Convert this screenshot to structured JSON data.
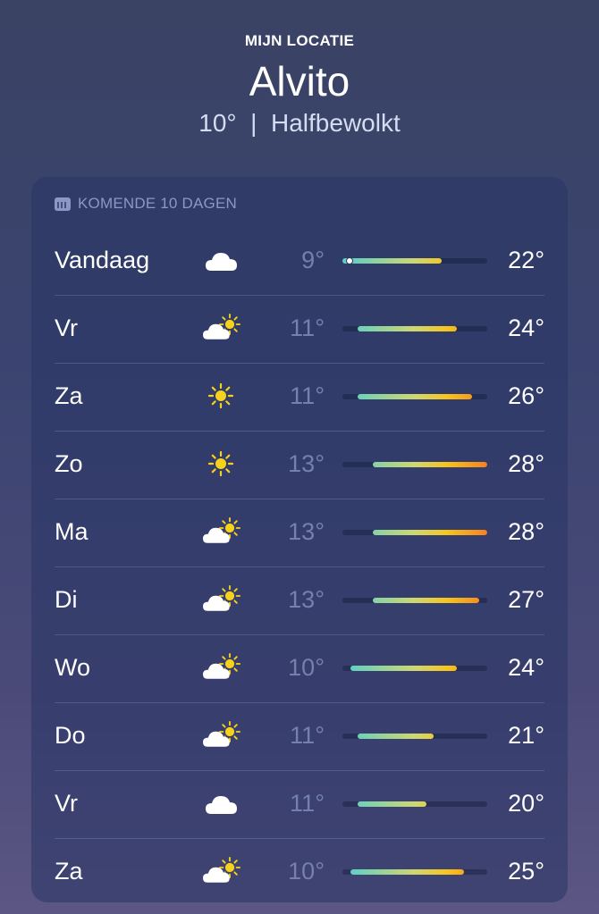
{
  "header": {
    "location_label": "MIJN LOCATIE",
    "city": "Alvito",
    "current_temp": "10°",
    "separator": "|",
    "condition": "Halfbewolkt"
  },
  "forecast": {
    "title": "KOMENDE 10 DAGEN",
    "title_icon": "calendar-icon",
    "range_min": 9,
    "range_max": 28,
    "current_temp_value": 10,
    "days": [
      {
        "day": "Vandaag",
        "icon": "cloud",
        "low": "9°",
        "high": "22°",
        "low_value": 9,
        "high_value": 22
      },
      {
        "day": "Vr",
        "icon": "partly-sunny",
        "low": "11°",
        "high": "24°",
        "low_value": 11,
        "high_value": 24
      },
      {
        "day": "Za",
        "icon": "sun",
        "low": "11°",
        "high": "26°",
        "low_value": 11,
        "high_value": 26
      },
      {
        "day": "Zo",
        "icon": "sun",
        "low": "13°",
        "high": "28°",
        "low_value": 13,
        "high_value": 28
      },
      {
        "day": "Ma",
        "icon": "partly-sunny",
        "low": "13°",
        "high": "28°",
        "low_value": 13,
        "high_value": 28
      },
      {
        "day": "Di",
        "icon": "partly-sunny",
        "low": "13°",
        "high": "27°",
        "low_value": 13,
        "high_value": 27
      },
      {
        "day": "Wo",
        "icon": "partly-sunny",
        "low": "10°",
        "high": "24°",
        "low_value": 10,
        "high_value": 24
      },
      {
        "day": "Do",
        "icon": "partly-sunny",
        "low": "11°",
        "high": "21°",
        "low_value": 11,
        "high_value": 21
      },
      {
        "day": "Vr",
        "icon": "cloud",
        "low": "11°",
        "high": "20°",
        "low_value": 11,
        "high_value": 20
      },
      {
        "day": "Za",
        "icon": "partly-sunny",
        "low": "10°",
        "high": "25°",
        "low_value": 10,
        "high_value": 25
      }
    ]
  },
  "colors": {
    "cool": "#5fd0c4",
    "mild": "#cfd770",
    "warm": "#f7c51c",
    "hot": "#f5821f"
  }
}
